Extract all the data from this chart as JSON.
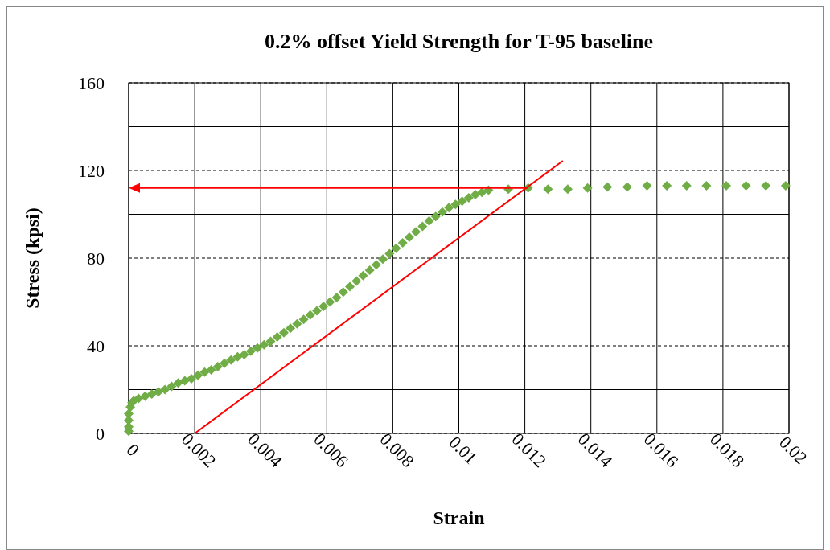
{
  "chart_data": {
    "type": "scatter",
    "title": "0.2% offset Yield Strength for T-95 baseline",
    "xlabel": "Strain",
    "ylabel": "Stress (kpsi)",
    "xlim": [
      0,
      0.02
    ],
    "xticks": [
      0,
      0.002,
      0.004,
      0.006,
      0.008,
      0.01,
      0.012,
      0.014,
      0.016,
      0.018,
      0.02
    ],
    "ylim": [
      0,
      160
    ],
    "yticks": [
      0,
      {
        "value": 20,
        "label": null
      },
      40,
      {
        "value": 60,
        "label": null
      },
      80,
      {
        "value": 100,
        "label": null
      },
      120,
      {
        "value": 140,
        "label": null
      },
      160
    ],
    "grid": true,
    "marker": "diamond",
    "series": [
      {
        "color": "#70ad47",
        "x": [
          0,
          0,
          0,
          0,
          5e-05,
          0.0001,
          0.00015,
          0.0003,
          0.0005,
          0.0007,
          0.0009,
          0.0011,
          0.0013,
          0.0015,
          0.0017,
          0.0019,
          0.0021,
          0.0023,
          0.0025,
          0.0027,
          0.0029,
          0.0031,
          0.0033,
          0.0035,
          0.0037,
          0.0039,
          0.0041,
          0.0043,
          0.0045,
          0.0047,
          0.0049,
          0.0051,
          0.0053,
          0.0055,
          0.0057,
          0.0059,
          0.0061,
          0.0063,
          0.0065,
          0.0067,
          0.0069,
          0.0071,
          0.0073,
          0.0075,
          0.0077,
          0.0079,
          0.0081,
          0.0083,
          0.0085,
          0.0087,
          0.0089,
          0.0091,
          0.0093,
          0.0095,
          0.0097,
          0.0099,
          0.0101,
          0.0103,
          0.0105,
          0.0107,
          0.0109,
          0.0115,
          0.0121,
          0.0127,
          0.0133,
          0.0139,
          0.0145,
          0.0151,
          0.0157,
          0.0163,
          0.0169,
          0.0175,
          0.0181,
          0.0187,
          0.0193,
          0.0199
        ],
        "values": [
          1,
          3,
          6,
          9,
          12,
          14,
          15,
          16,
          17,
          18,
          19,
          20,
          21.5,
          23,
          24,
          25,
          26.5,
          28,
          29,
          30.5,
          32,
          33.5,
          35,
          36,
          37.5,
          39,
          40.5,
          42,
          44,
          46,
          48,
          50,
          52,
          54,
          56,
          58,
          60,
          62,
          64.5,
          67,
          69.5,
          72,
          74.5,
          77,
          79.5,
          82,
          84.5,
          87,
          89.5,
          92,
          94.5,
          97,
          99,
          101,
          103,
          104.5,
          106,
          107.5,
          109,
          110,
          111,
          111.5,
          112,
          111.5,
          111.5,
          112,
          112.5,
          112.5,
          113,
          113,
          113,
          113,
          113,
          113,
          113,
          113
        ]
      },
      {
        "type": "line",
        "color": "#ff0000",
        "marker": "none",
        "x": [
          0.002,
          0.01315
        ],
        "values": [
          0,
          124.4
        ]
      }
    ]
  }
}
